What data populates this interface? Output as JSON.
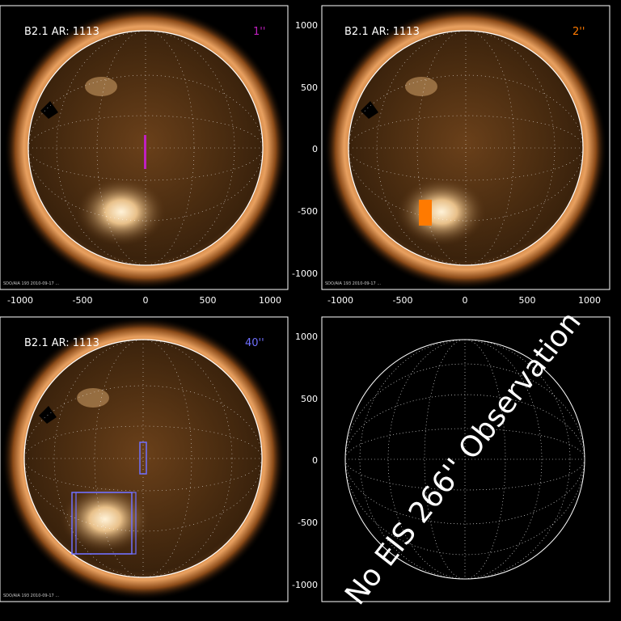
{
  "panels": [
    {
      "header": "B2.1  AR: 1113",
      "tag": "1''",
      "tag_color": "#c020c0",
      "footer": "SDO/AIA 193 2010-09-17 ..."
    },
    {
      "header": "B2.1  AR: 1113",
      "tag": "2''",
      "tag_color": "#ff7a00",
      "footer": "SDO/AIA 193 2010-09-17 ..."
    },
    {
      "header": "B2.1  AR: 1113",
      "tag": "40''",
      "tag_color": "#7070ff",
      "footer": "SDO/AIA 193 2010-09-17 ..."
    }
  ],
  "empty_panel": {
    "message": "No EIS 266'' Observation"
  },
  "axes": {
    "x_ticks": [
      "-1000",
      "-500",
      "0",
      "500",
      "1000"
    ],
    "y_ticks": [
      "1000",
      "500",
      "0",
      "-500",
      "-1000"
    ]
  },
  "colors": {
    "sun_dark": "#2a1606",
    "sun_mid": "#7a4a1c",
    "sun_bright": "#f0c890",
    "limb": "#ffffff"
  }
}
